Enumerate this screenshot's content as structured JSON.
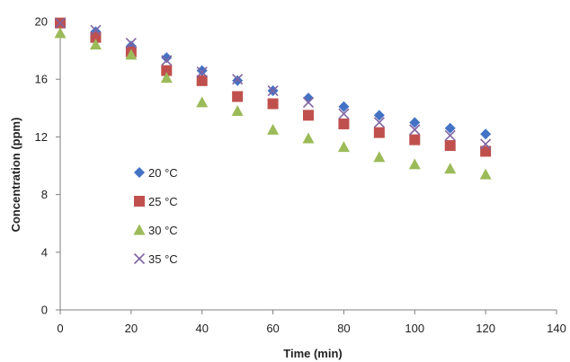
{
  "chart_data": {
    "type": "scatter",
    "title": "",
    "xlabel": "Time (min)",
    "ylabel": "Concentration (ppm)",
    "xlim": [
      0,
      140
    ],
    "ylim": [
      0,
      20
    ],
    "xticks": [
      0,
      20,
      40,
      60,
      80,
      100,
      120,
      140
    ],
    "yticks": [
      0,
      4,
      8,
      12,
      16,
      20
    ],
    "grid": false,
    "legend_position": "left-center",
    "x": [
      0,
      10,
      20,
      30,
      40,
      50,
      60,
      70,
      80,
      90,
      100,
      110,
      120
    ],
    "series": [
      {
        "name": "20 °C",
        "marker": "diamond",
        "color": "#4472C4",
        "values": [
          19.9,
          19.3,
          18.3,
          17.5,
          16.6,
          15.9,
          15.2,
          14.7,
          14.1,
          13.5,
          13.0,
          12.6,
          12.2
        ]
      },
      {
        "name": "25 °C",
        "marker": "square",
        "color": "#C0504D",
        "values": [
          19.9,
          18.9,
          17.9,
          16.6,
          15.9,
          14.8,
          14.3,
          13.5,
          12.9,
          12.3,
          11.8,
          11.4,
          11.0
        ]
      },
      {
        "name": "30 °C",
        "marker": "triangle",
        "color": "#9BBB59",
        "values": [
          19.2,
          18.4,
          17.7,
          16.1,
          14.4,
          13.8,
          12.5,
          11.9,
          11.3,
          10.6,
          10.1,
          9.8,
          9.4
        ]
      },
      {
        "name": "35 °C",
        "marker": "cross",
        "color": "#8064A2",
        "values": [
          19.9,
          19.4,
          18.5,
          17.3,
          16.5,
          16.0,
          15.2,
          14.4,
          13.6,
          13.0,
          12.5,
          12.1,
          11.5
        ]
      }
    ]
  }
}
